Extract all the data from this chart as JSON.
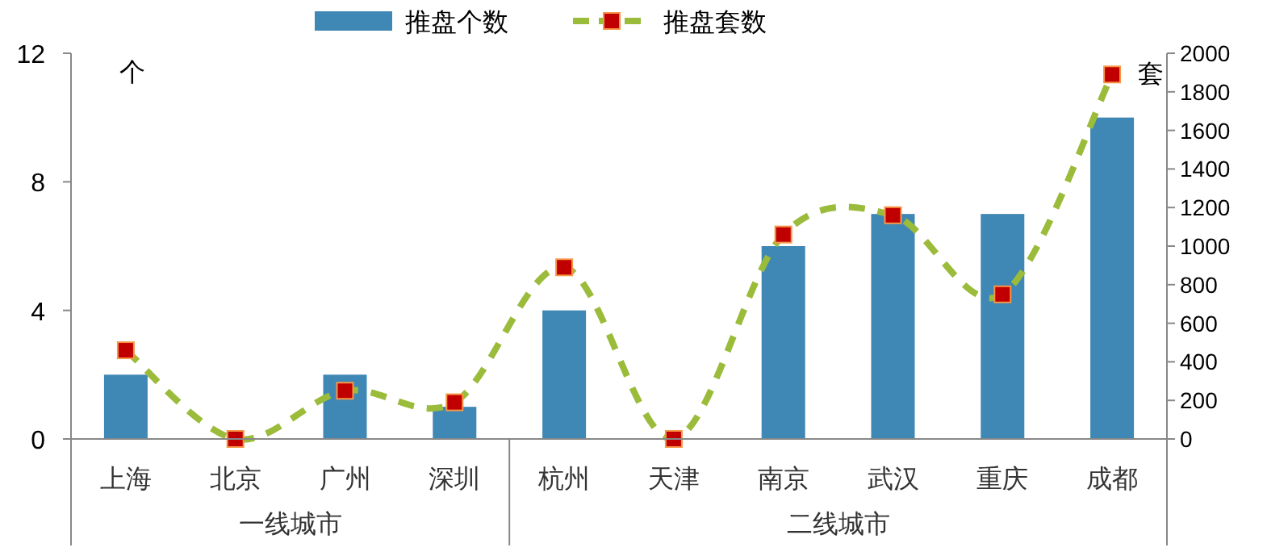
{
  "chart_data": {
    "type": "bar",
    "categories": [
      "上海",
      "北京",
      "广州",
      "深圳",
      "杭州",
      "天津",
      "南京",
      "武汉",
      "重庆",
      "成都"
    ],
    "series": [
      {
        "name": "推盘个数",
        "color": "#3f87b4",
        "values": [
          2,
          0,
          2,
          1,
          4,
          0,
          6,
          7,
          7,
          10
        ]
      },
      {
        "name": "推盘套数",
        "type": "line",
        "axis": "y2",
        "color": "#9bbb3b",
        "marker": "square",
        "line_style": "dashed",
        "values": [
          460,
          0,
          250,
          190,
          890,
          0,
          1060,
          1160,
          750,
          1890
        ]
      }
    ],
    "ylabel": "个",
    "y2label": "套",
    "ylim": [
      0,
      12
    ],
    "yticks": [
      0,
      4,
      8,
      12
    ],
    "y2lim": [
      0,
      2000
    ],
    "y2ticks": [
      0,
      200,
      400,
      600,
      800,
      1000,
      1200,
      1400,
      1600,
      1800,
      2000
    ],
    "annotations": [
      "一线城市",
      "二线城市"
    ],
    "legend": "top",
    "grid": false
  }
}
